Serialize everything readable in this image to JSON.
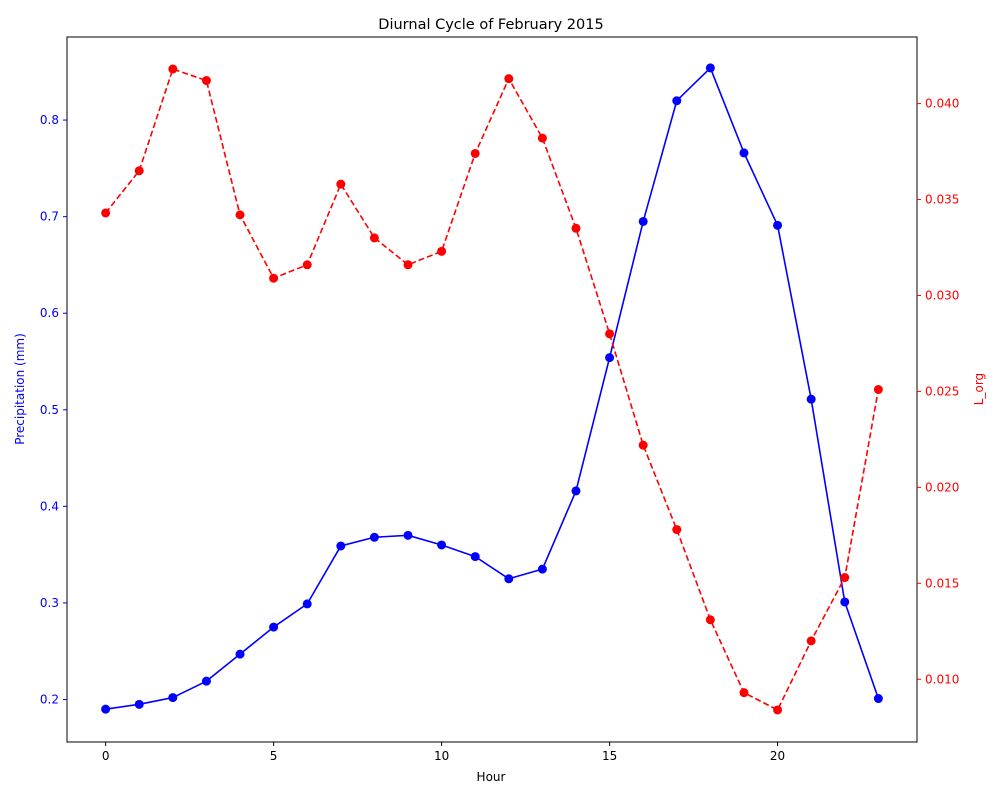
{
  "chart_data": {
    "type": "line",
    "title": "Diurnal Cycle of February 2015",
    "xlabel": "Hour",
    "x": [
      0,
      1,
      2,
      3,
      4,
      5,
      6,
      7,
      8,
      9,
      10,
      11,
      12,
      13,
      14,
      15,
      16,
      17,
      18,
      19,
      20,
      21,
      22,
      23
    ],
    "xlim": [
      -1.15,
      24.15
    ],
    "xticks": [
      0,
      5,
      10,
      15,
      20
    ],
    "series": [
      {
        "name": "Precipitation (mm)",
        "axis": "left",
        "color": "#0000ff",
        "linestyle": "solid",
        "marker": "circle",
        "values": [
          0.19,
          0.195,
          0.202,
          0.219,
          0.247,
          0.275,
          0.299,
          0.359,
          0.368,
          0.37,
          0.36,
          0.348,
          0.325,
          0.335,
          0.416,
          0.554,
          0.695,
          0.82,
          0.854,
          0.766,
          0.691,
          0.511,
          0.301,
          0.201
        ]
      },
      {
        "name": "L_org",
        "axis": "right",
        "color": "#ff0000",
        "linestyle": "dashed",
        "marker": "circle",
        "values": [
          0.0343,
          0.0365,
          0.0418,
          0.0412,
          0.0342,
          0.0309,
          0.0316,
          0.0358,
          0.033,
          0.0316,
          0.0323,
          0.0374,
          0.0413,
          0.0382,
          0.0335,
          0.028,
          0.0222,
          0.0178,
          0.0131,
          0.0093,
          0.0084,
          0.012,
          0.0153,
          0.0251
        ]
      }
    ],
    "y_left": {
      "label": "Precipitation (mm)",
      "color": "#0000ff",
      "lim": [
        0.156,
        0.886
      ],
      "ticks": [
        0.2,
        0.3,
        0.4,
        0.5,
        0.6,
        0.7,
        0.8
      ],
      "tick_labels": [
        "0.2",
        "0.3",
        "0.4",
        "0.5",
        "0.6",
        "0.7",
        "0.8"
      ]
    },
    "y_right": {
      "label": "L_org",
      "color": "#ff0000",
      "lim": [
        0.00673,
        0.04347
      ],
      "ticks": [
        0.01,
        0.015,
        0.02,
        0.025,
        0.03,
        0.035,
        0.04
      ],
      "tick_labels": [
        "0.010",
        "0.015",
        "0.020",
        "0.025",
        "0.030",
        "0.035",
        "0.040"
      ]
    },
    "grid": false,
    "legend": "none"
  }
}
